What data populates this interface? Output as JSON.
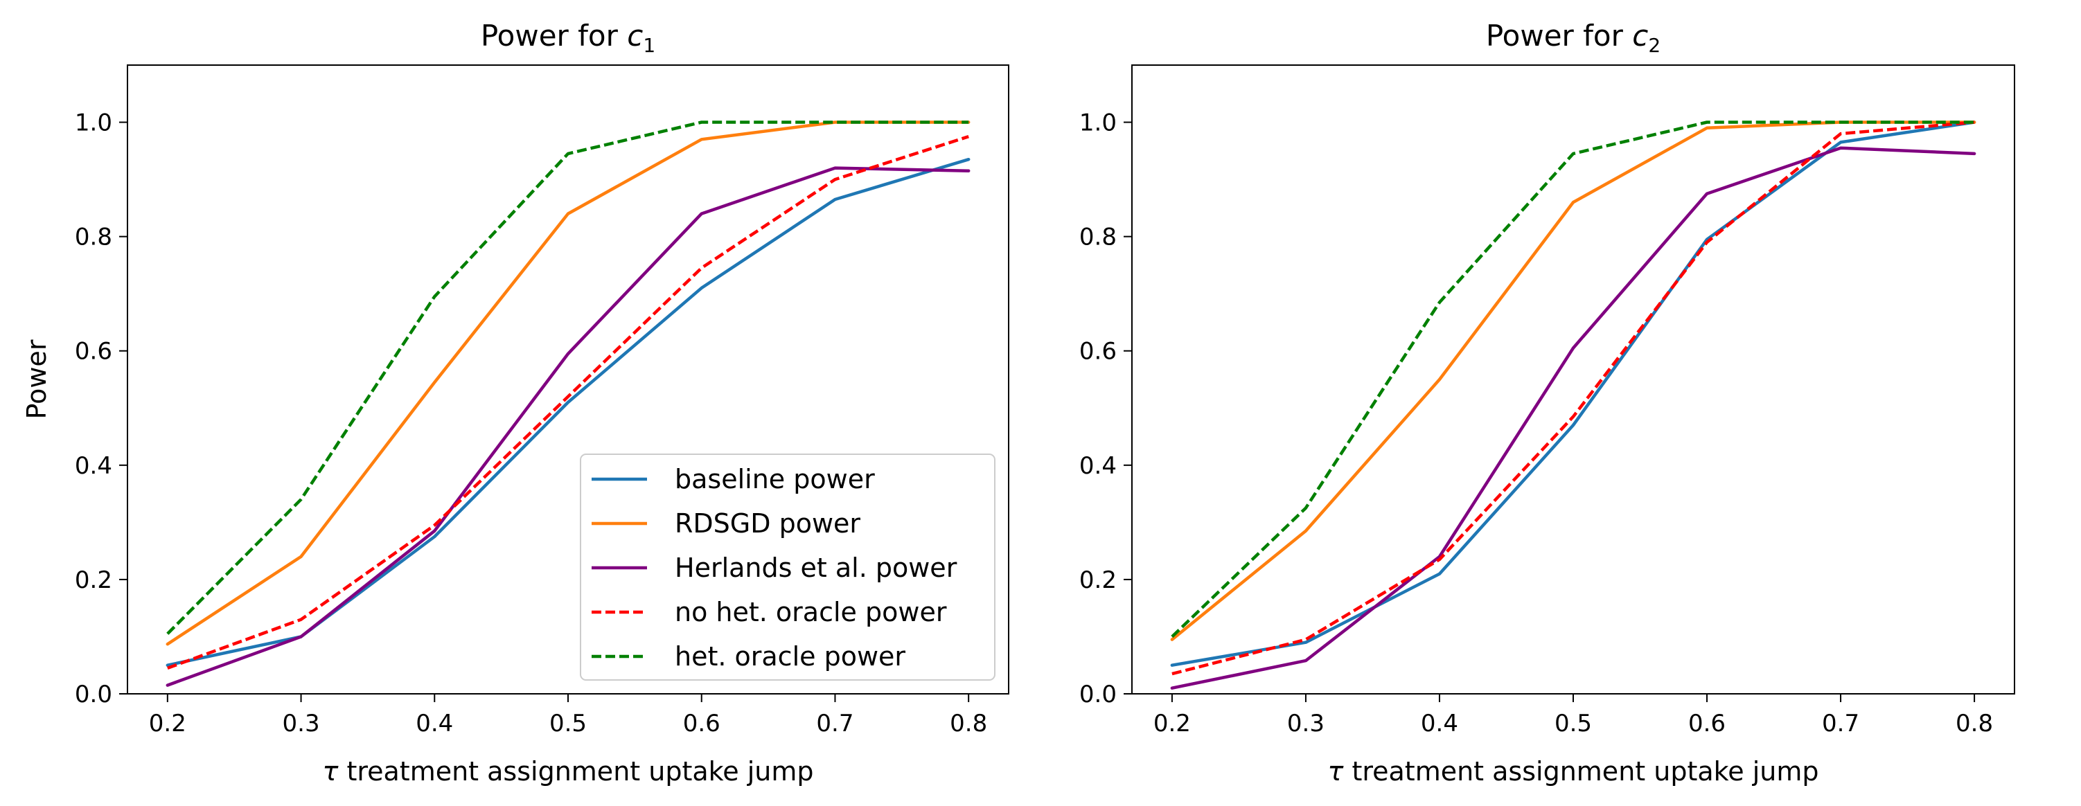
{
  "colors": {
    "baseline": "#1f77b4",
    "rdsgd": "#ff7f0e",
    "herlands": "#800080",
    "no_het_oracle": "#ff0000",
    "het_oracle": "#008000"
  },
  "chart_data": [
    {
      "type": "line",
      "title_prefix": "Power for ",
      "title_var": "c",
      "title_sub": "1",
      "xlabel_symbol": "τ",
      "xlabel_text": " treatment assignment uptake jump",
      "ylabel": "Power",
      "x": [
        0.2,
        0.3,
        0.4,
        0.5,
        0.6,
        0.7,
        0.8
      ],
      "xticks": [
        "0.2",
        "0.3",
        "0.4",
        "0.5",
        "0.6",
        "0.7",
        "0.8"
      ],
      "yticks": [
        "0.0",
        "0.2",
        "0.4",
        "0.6",
        "0.8",
        "1.0"
      ],
      "xlim": [
        0.17,
        0.83
      ],
      "ylim": [
        0.0,
        1.1
      ],
      "grid": false,
      "legend_position": "lower right",
      "series": [
        {
          "name": "baseline power",
          "color": "#1f77b4",
          "dash": "solid",
          "values": [
            0.05,
            0.1,
            0.275,
            0.51,
            0.71,
            0.865,
            0.935
          ]
        },
        {
          "name": "RDSGD power",
          "color": "#ff7f0e",
          "dash": "solid",
          "values": [
            0.087,
            0.24,
            0.545,
            0.84,
            0.97,
            1.0,
            1.0
          ]
        },
        {
          "name": "Herlands et al. power",
          "color": "#800080",
          "dash": "solid",
          "values": [
            0.015,
            0.1,
            0.285,
            0.595,
            0.84,
            0.92,
            0.915
          ]
        },
        {
          "name": "no het. oracle power",
          "color": "#ff0000",
          "dash": "dashed",
          "values": [
            0.045,
            0.13,
            0.295,
            0.52,
            0.745,
            0.9,
            0.975
          ]
        },
        {
          "name": "het. oracle power",
          "color": "#008000",
          "dash": "dashed",
          "values": [
            0.105,
            0.34,
            0.695,
            0.945,
            1.0,
            1.0,
            1.0
          ]
        }
      ]
    },
    {
      "type": "line",
      "title_prefix": "Power for ",
      "title_var": "c",
      "title_sub": "2",
      "xlabel_symbol": "τ",
      "xlabel_text": " treatment assignment uptake jump",
      "ylabel": "",
      "x": [
        0.2,
        0.3,
        0.4,
        0.5,
        0.6,
        0.7,
        0.8
      ],
      "xticks": [
        "0.2",
        "0.3",
        "0.4",
        "0.5",
        "0.6",
        "0.7",
        "0.8"
      ],
      "yticks": [
        "0.0",
        "0.2",
        "0.4",
        "0.6",
        "0.8",
        "1.0"
      ],
      "xlim": [
        0.17,
        0.83
      ],
      "ylim": [
        0.0,
        1.1
      ],
      "grid": false,
      "series": [
        {
          "color": "#1f77b4",
          "dash": "solid",
          "values": [
            0.05,
            0.09,
            0.21,
            0.47,
            0.795,
            0.965,
            1.0
          ]
        },
        {
          "color": "#ff7f0e",
          "dash": "solid",
          "values": [
            0.095,
            0.285,
            0.55,
            0.86,
            0.99,
            1.0,
            1.0
          ]
        },
        {
          "color": "#800080",
          "dash": "solid",
          "values": [
            0.01,
            0.058,
            0.24,
            0.605,
            0.875,
            0.955,
            0.945
          ]
        },
        {
          "color": "#ff0000",
          "dash": "dashed",
          "values": [
            0.035,
            0.095,
            0.235,
            0.485,
            0.79,
            0.98,
            1.0
          ]
        },
        {
          "color": "#008000",
          "dash": "dashed",
          "values": [
            0.1,
            0.325,
            0.685,
            0.945,
            1.0,
            1.0,
            1.0
          ]
        }
      ]
    }
  ]
}
